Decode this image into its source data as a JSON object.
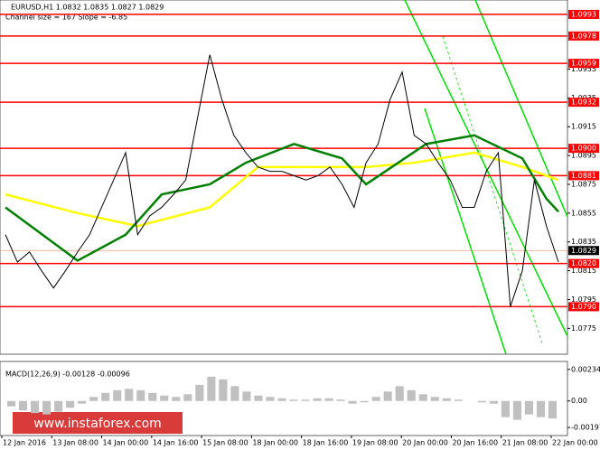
{
  "header": {
    "symbol": "EURUSD,H1  1.0832 1.0835 1.0827 1.0829",
    "channel": "Channel size = 167 Slope = -6.85"
  },
  "chart_data": [
    {
      "type": "line",
      "x": [
        0,
        1,
        2,
        3,
        4,
        5,
        6,
        7,
        8,
        9,
        10,
        11,
        12,
        13,
        14,
        15,
        16,
        17,
        18,
        19,
        20,
        21,
        22,
        23,
        24,
        25,
        26,
        27,
        28,
        29,
        30,
        31,
        32,
        33,
        34,
        35,
        36,
        37,
        38,
        39,
        40,
        41,
        42,
        43,
        44,
        45,
        46
      ],
      "series": [
        {
          "color": "#000000",
          "values": [
            1.084,
            1.0821,
            1.0828,
            1.0815,
            1.0803,
            1.0815,
            1.0828,
            1.084,
            1.0859,
            1.0878,
            1.0897,
            1.084,
            1.0853,
            1.0859,
            1.0868,
            1.0878,
            1.0922,
            1.0965,
            1.0934,
            1.0909,
            1.0897,
            1.0887,
            1.0884,
            1.0884,
            1.0881,
            1.0878,
            1.0881,
            1.0887,
            1.0875,
            1.0859,
            1.089,
            1.0903,
            1.0934,
            1.0953,
            1.0909,
            1.0903,
            1.089,
            1.0878,
            1.0859,
            1.0859,
            1.0884,
            1.0897,
            1.079,
            1.0815,
            1.0878,
            1.0846,
            1.0821
          ]
        }
      ],
      "ma_series": [
        {
          "color": "#ffff00",
          "x": [
            0,
            6,
            11,
            17,
            21,
            30,
            34,
            39,
            43,
            46
          ],
          "values": [
            1.0868,
            1.0855,
            1.0846,
            1.0859,
            1.0887,
            1.0887,
            1.089,
            1.0897,
            1.0887,
            1.0878
          ]
        },
        {
          "color": "#008000",
          "x": [
            0,
            6,
            10,
            13,
            17,
            20,
            24,
            28,
            30,
            35,
            39,
            43,
            45,
            46
          ],
          "values": [
            1.0859,
            1.0822,
            1.084,
            1.0868,
            1.0875,
            1.089,
            1.0903,
            1.0893,
            1.0875,
            1.0903,
            1.0909,
            1.0893,
            1.0865,
            1.0856
          ]
        }
      ],
      "ylim": [
        1.0757,
        1.1003
      ],
      "yticks": [
        1.0955,
        1.0935,
        1.0915,
        1.0895,
        1.0875,
        1.0855,
        1.0835,
        1.0815,
        1.0795,
        1.0775
      ],
      "levels": [
        1.0993,
        1.0978,
        1.0959,
        1.0932,
        {
          "value": 1.09,
          "label": "1.0900"
        },
        1.0881,
        {
          "value": 1.082,
          "label": "1.0820"
        },
        {
          "value": 1.079,
          "label": "1.0790"
        }
      ],
      "level_color": "#ff0000",
      "current": 1.0829,
      "xticks": [
        "12 Jan 2016",
        "13 Jan 08:00",
        "14 Jan 00:00",
        "14 Jan 16:00",
        "15 Jan 08:00",
        "18 Jan 00:00",
        "18 Jan 16:00",
        "19 Jan 08:00",
        "20 Jan 00:00",
        "20 Jan 16:00",
        "21 Jan 08:00",
        "22 Jan 00:00"
      ]
    },
    {
      "type": "bar",
      "title": "MACD(12,26,9) -0.00128 -0.00096",
      "values": [
        -0.0004,
        -0.0007,
        -0.0009,
        -0.001,
        -0.0008,
        -0.0005,
        -0.0002,
        0.0003,
        0.0006,
        0.0008,
        0.0009,
        0.0008,
        0.0006,
        0.0004,
        0.0003,
        0.0005,
        0.0012,
        0.0018,
        0.0016,
        0.0011,
        0.0007,
        0.0004,
        0.0003,
        0.0002,
        0.0001,
        0.0001,
        0.0002,
        0.0002,
        0.0001,
        -0.0002,
        -0.0001,
        0.0003,
        0.0007,
        0.0011,
        0.0008,
        0.0005,
        0.0003,
        0.0002,
        0.0001,
        0.0,
        -0.0001,
        -0.0002,
        -0.0012,
        -0.0014,
        -0.001,
        -0.0012,
        -0.0013
      ],
      "color": "#c0c0c0",
      "ylim": [
        -0.0025,
        0.0028
      ],
      "yticks": [
        0.00234,
        {
          "value": 0,
          "label": "0.00"
        },
        -0.00197
      ]
    }
  ],
  "watermark": "www.instaforex.com"
}
